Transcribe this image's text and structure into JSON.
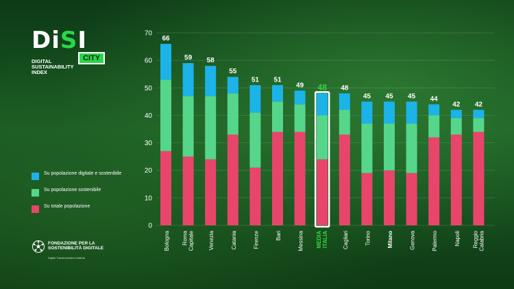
{
  "brand": {
    "logo_main_a": "Di",
    "logo_main_s": "S",
    "logo_main_b": "I",
    "logo_badge": "CITY",
    "logo_sub": "DIGITAL\nSUSTAINABILITY\nINDEX"
  },
  "foundation": {
    "name": "FONDAZIONE PER LA SOSTENIBILITÀ DIGITALE",
    "tagline": "Digital Transformation Institute"
  },
  "colors": {
    "digital_sustainable": "#1bb3e8",
    "sustainable": "#56d68a",
    "total": "#e8456b",
    "highlight_text": "#39d43d"
  },
  "legend": [
    {
      "label": "Su popolazione digitale e sostenibile",
      "color": "#1bb3e8"
    },
    {
      "label": "Su popolazione sostenibile",
      "color": "#56d68a"
    },
    {
      "label": "Su totale popolazione",
      "color": "#e8456b"
    }
  ],
  "chart_data": {
    "type": "bar",
    "stacked": true,
    "ylim": [
      0,
      70
    ],
    "yticks": [
      0,
      10,
      20,
      30,
      40,
      50,
      60,
      70
    ],
    "grid": true,
    "legend_position": "left",
    "categories": [
      {
        "label": "Bologna",
        "highlight": false,
        "bold": false
      },
      {
        "label": "Roma Capitale",
        "highlight": false,
        "bold": false
      },
      {
        "label": "Venezia",
        "highlight": false,
        "bold": false
      },
      {
        "label": "Catania",
        "highlight": false,
        "bold": false
      },
      {
        "label": "Firenze",
        "highlight": false,
        "bold": false
      },
      {
        "label": "Bari",
        "highlight": false,
        "bold": false
      },
      {
        "label": "Messina",
        "highlight": false,
        "bold": false
      },
      {
        "label": "MEDIA ITALIA",
        "highlight": true,
        "bold": true
      },
      {
        "label": "Cagliari",
        "highlight": false,
        "bold": false
      },
      {
        "label": "Torino",
        "highlight": false,
        "bold": false
      },
      {
        "label": "Milano",
        "highlight": false,
        "bold": true
      },
      {
        "label": "Genova",
        "highlight": false,
        "bold": false
      },
      {
        "label": "Palermo",
        "highlight": false,
        "bold": false
      },
      {
        "label": "Napoli",
        "highlight": false,
        "bold": false
      },
      {
        "label": "Reggio Calabria",
        "highlight": false,
        "bold": false
      }
    ],
    "totals": [
      66,
      59,
      58,
      55,
      51,
      51,
      49,
      48,
      48,
      45,
      45,
      45,
      44,
      42,
      42
    ],
    "series": [
      {
        "name": "Su totale popolazione",
        "values": [
          27,
          25,
          24,
          33,
          21,
          34,
          34,
          24,
          33,
          19,
          20,
          19,
          32,
          33,
          34
        ]
      },
      {
        "name": "Su popolazione sostenibile",
        "values": [
          26,
          22,
          23,
          15,
          20,
          11,
          10,
          16,
          9,
          18,
          17,
          18,
          8,
          6,
          5
        ]
      },
      {
        "name": "Su popolazione digitale e sostenibile",
        "values": [
          13,
          12,
          11,
          6,
          10,
          6,
          5,
          8,
          6,
          8,
          8,
          8,
          4,
          3,
          3
        ]
      }
    ]
  }
}
